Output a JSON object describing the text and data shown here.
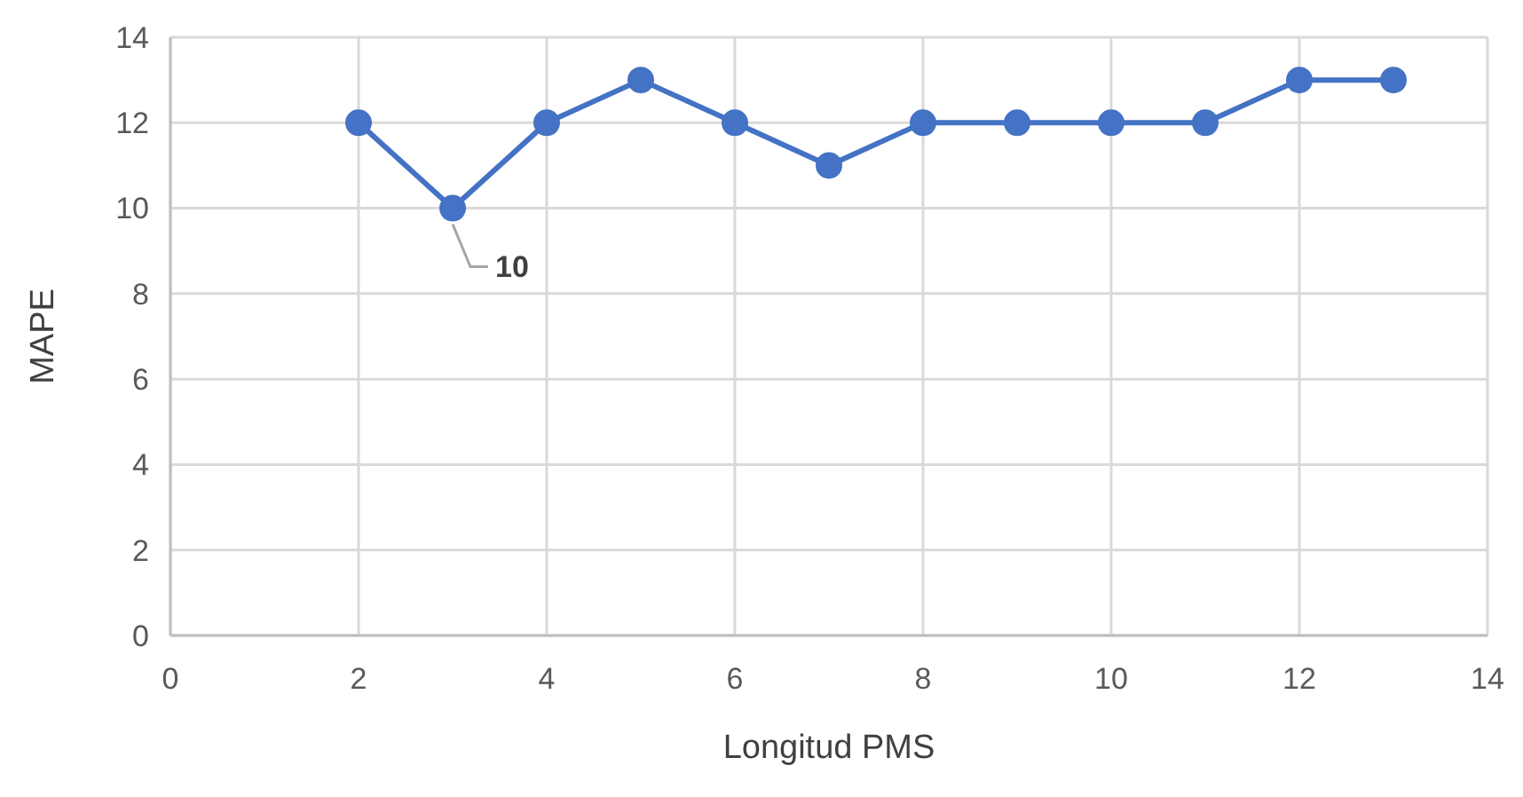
{
  "chart_data": {
    "type": "line",
    "xlabel": "Longitud PMS",
    "ylabel": "MAPE",
    "x": [
      2,
      3,
      4,
      5,
      6,
      7,
      8,
      9,
      10,
      11,
      12,
      13
    ],
    "series": [
      {
        "color": "#4472c4",
        "values": [
          12,
          10,
          12,
          13,
          12,
          11,
          12,
          12,
          12,
          12,
          13,
          13
        ]
      }
    ],
    "xlim": [
      0,
      14
    ],
    "xticks": [
      0,
      2,
      4,
      6,
      8,
      10,
      12,
      14
    ],
    "ylim": [
      0,
      14
    ],
    "yticks": [
      0,
      2,
      4,
      6,
      8,
      10,
      12,
      14
    ],
    "grid": true,
    "marker": "circle",
    "line_style": "solid",
    "annotations": [
      {
        "text": "10",
        "x": 3,
        "y": 10
      }
    ]
  }
}
